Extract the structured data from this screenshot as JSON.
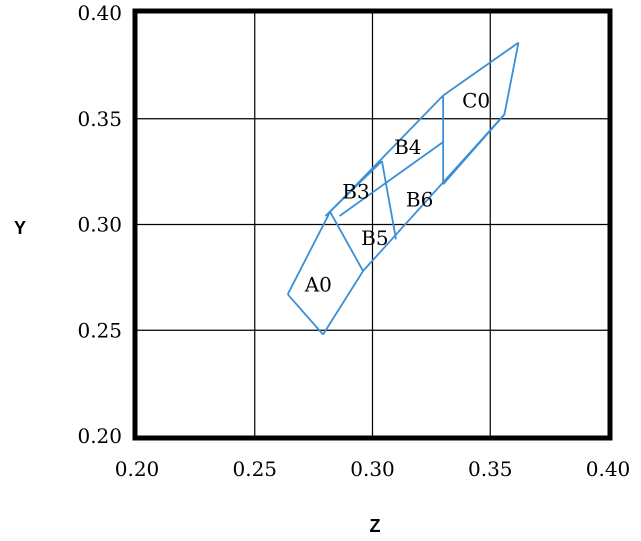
{
  "colors": {
    "region_stroke": "#3a8fd6",
    "frame": "#000000",
    "grid": "#000000"
  },
  "chart_data": {
    "type": "line",
    "title": "",
    "xlabel": "Z",
    "ylabel": "Y",
    "xlim": [
      0.2,
      0.4
    ],
    "ylim": [
      0.2,
      0.4
    ],
    "xticks": [
      {
        "value": 0.2,
        "label": "0.20"
      },
      {
        "value": 0.25,
        "label": "0.25"
      },
      {
        "value": 0.3,
        "label": "0.30"
      },
      {
        "value": 0.35,
        "label": "0.35"
      },
      {
        "value": 0.4,
        "label": "0.40"
      }
    ],
    "yticks": [
      {
        "value": 0.2,
        "label": "0.20"
      },
      {
        "value": 0.25,
        "label": "0.25"
      },
      {
        "value": 0.3,
        "label": "0.30"
      },
      {
        "value": 0.35,
        "label": "0.35"
      },
      {
        "value": 0.4,
        "label": "0.40"
      }
    ],
    "grid": true,
    "segments": [
      {
        "from": [
          0.264,
          0.267
        ],
        "to": [
          0.282,
          0.306
        ]
      },
      {
        "from": [
          0.282,
          0.306
        ],
        "to": [
          0.33,
          0.361
        ]
      },
      {
        "from": [
          0.33,
          0.361
        ],
        "to": [
          0.362,
          0.386
        ]
      },
      {
        "from": [
          0.362,
          0.386
        ],
        "to": [
          0.356,
          0.352
        ]
      },
      {
        "from": [
          0.356,
          0.352
        ],
        "to": [
          0.296,
          0.278
        ]
      },
      {
        "from": [
          0.296,
          0.278
        ],
        "to": [
          0.279,
          0.248
        ]
      },
      {
        "from": [
          0.279,
          0.248
        ],
        "to": [
          0.264,
          0.267
        ]
      },
      {
        "from": [
          0.282,
          0.306
        ],
        "to": [
          0.296,
          0.278
        ]
      },
      {
        "from": [
          0.286,
          0.304
        ],
        "to": [
          0.33,
          0.339
        ]
      },
      {
        "from": [
          0.304,
          0.33
        ],
        "to": [
          0.31,
          0.293
        ]
      },
      {
        "from": [
          0.33,
          0.361
        ],
        "to": [
          0.33,
          0.319
        ]
      },
      {
        "from": [
          0.33,
          0.319
        ],
        "to": [
          0.356,
          0.352
        ]
      },
      {
        "from": [
          0.28,
          0.304
        ],
        "to": [
          0.304,
          0.33
        ]
      }
    ],
    "regions": [
      {
        "label": "A0",
        "x": 0.277,
        "y": 0.271
      },
      {
        "label": "B5",
        "x": 0.301,
        "y": 0.293
      },
      {
        "label": "B3",
        "x": 0.293,
        "y": 0.315
      },
      {
        "label": "B6",
        "x": 0.32,
        "y": 0.311
      },
      {
        "label": "B4",
        "x": 0.315,
        "y": 0.336
      },
      {
        "label": "C0",
        "x": 0.344,
        "y": 0.358
      }
    ]
  }
}
